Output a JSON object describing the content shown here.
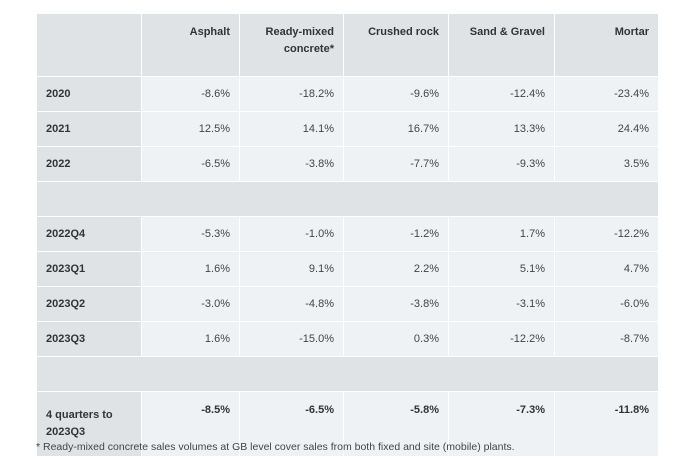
{
  "table": {
    "headers": [
      "",
      "Asphalt",
      "Ready-mixed concrete*",
      "Crushed rock",
      "Sand & Gravel",
      "Mortar"
    ],
    "rows_a": [
      {
        "label": "2020",
        "values": [
          "-8.6%",
          "-18.2%",
          "-9.6%",
          "-12.4%",
          "-23.4%"
        ]
      },
      {
        "label": "2021",
        "values": [
          "12.5%",
          "14.1%",
          "16.7%",
          "13.3%",
          "24.4%"
        ]
      },
      {
        "label": "2022",
        "values": [
          "-6.5%",
          "-3.8%",
          "-7.7%",
          "-9.3%",
          "3.5%"
        ]
      }
    ],
    "rows_b": [
      {
        "label": "2022Q4",
        "values": [
          "-5.3%",
          "-1.0%",
          "-1.2%",
          "1.7%",
          "-12.2%"
        ]
      },
      {
        "label": "2023Q1",
        "values": [
          "1.6%",
          "9.1%",
          "2.2%",
          "5.1%",
          "4.7%"
        ]
      },
      {
        "label": "2023Q2",
        "values": [
          "-3.0%",
          "-4.8%",
          "-3.8%",
          "-3.1%",
          "-6.0%"
        ]
      },
      {
        "label": "2023Q3",
        "values": [
          "1.6%",
          "-15.0%",
          "0.3%",
          "-12.2%",
          "-8.7%"
        ]
      }
    ],
    "total": {
      "label": "4 quarters to 2023Q3",
      "values": [
        "-8.5%",
        "-6.5%",
        "-5.8%",
        "-7.3%",
        "-11.8%"
      ]
    }
  },
  "footnote": "* Ready-mixed concrete sales volumes at GB level cover sales from both fixed and site (mobile) plants."
}
